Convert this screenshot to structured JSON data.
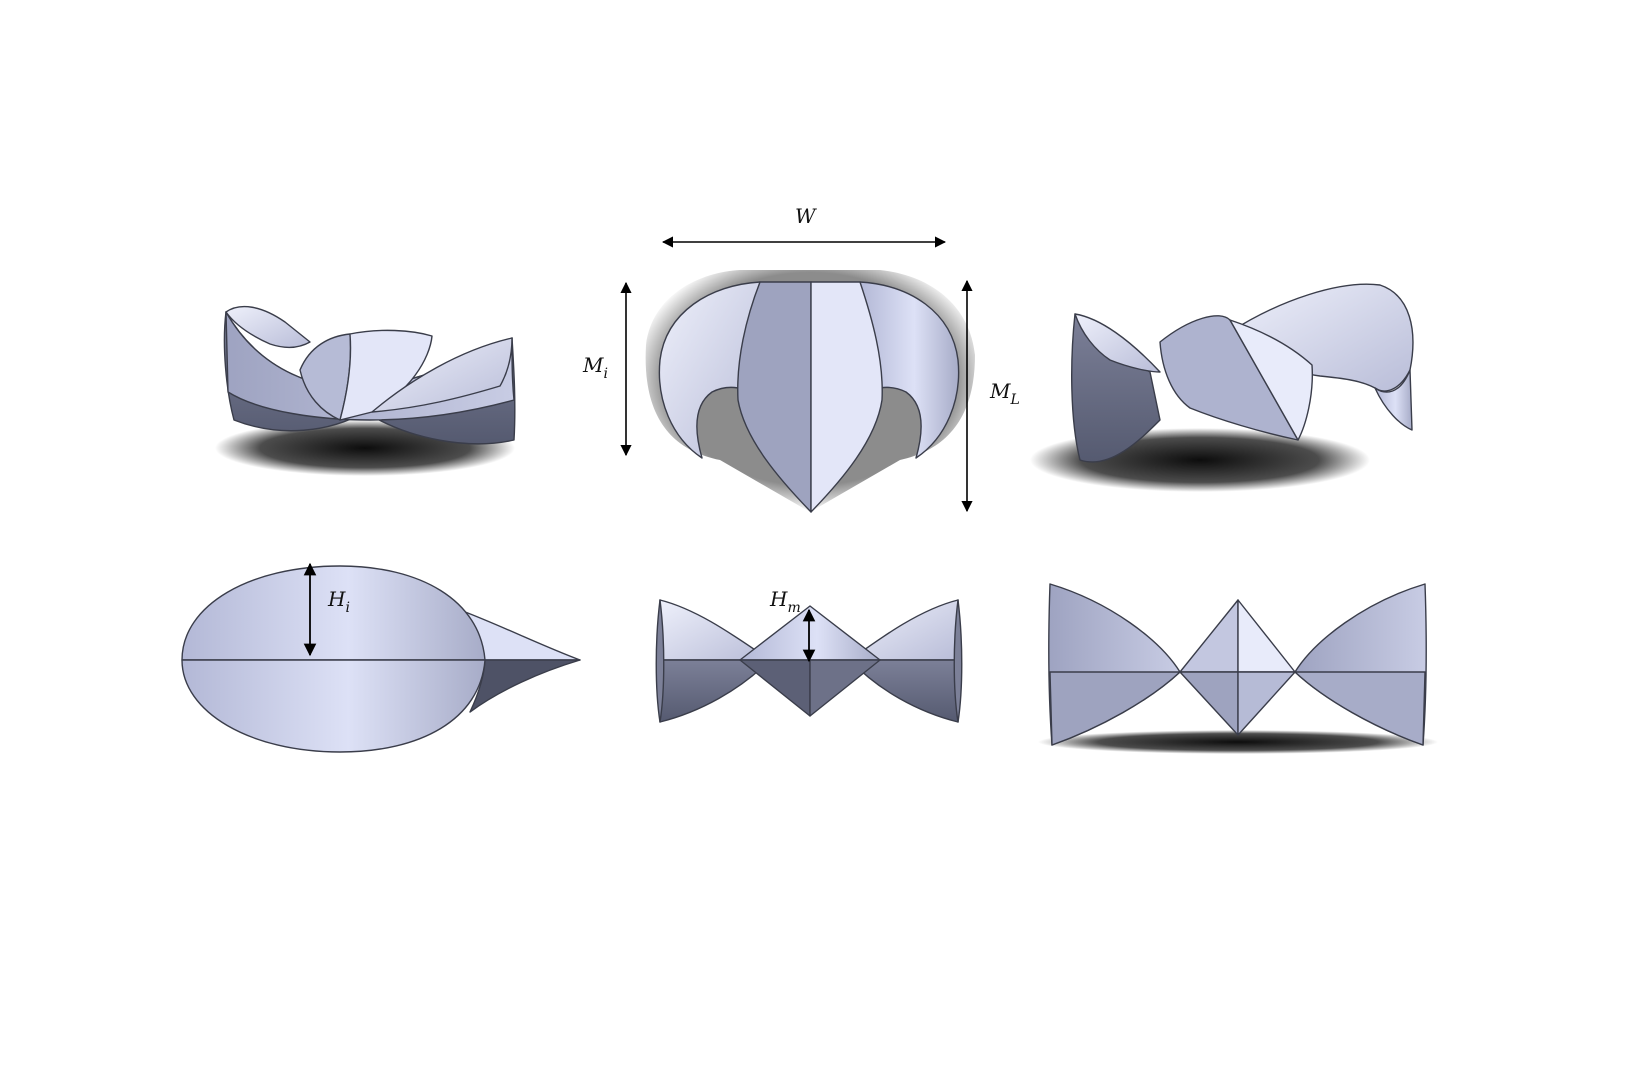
{
  "labels": {
    "W": {
      "base": "W",
      "sub": ""
    },
    "Mi": {
      "base": "M",
      "sub": "i"
    },
    "ML": {
      "base": "M",
      "sub": "L"
    },
    "Hi": {
      "base": "H",
      "sub": "i"
    },
    "Hm": {
      "base": "H",
      "sub": "m"
    }
  },
  "colors": {
    "surface_light": "#dfe3f7",
    "surface_mid": "#aeb3cf",
    "surface_dark": "#5c6076",
    "edge": "#3a3d4a",
    "arrow": "#000000",
    "shadow": "#000000"
  },
  "views": [
    "isometric-left",
    "front-view",
    "isometric-right",
    "top-view",
    "side-view",
    "perspective-front"
  ]
}
